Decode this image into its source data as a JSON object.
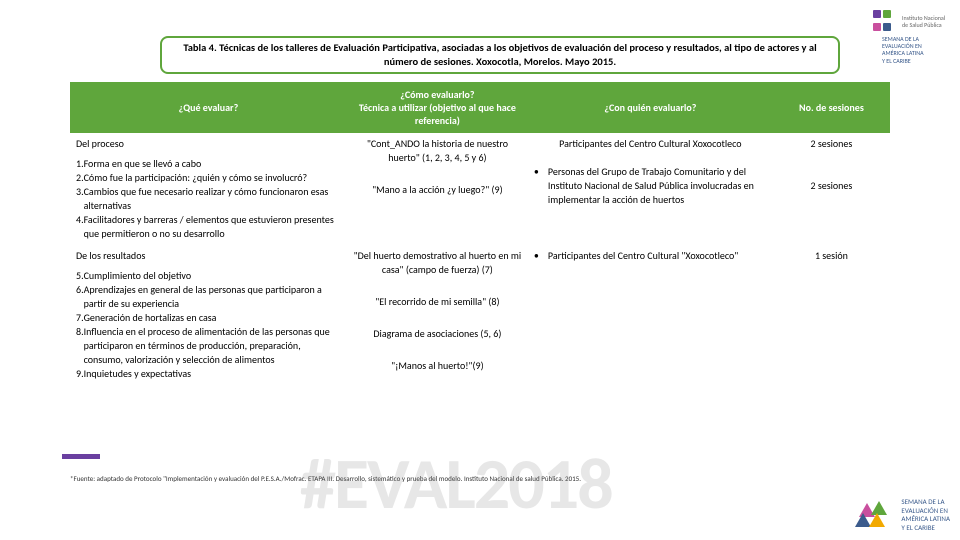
{
  "title": "Tabla 4. Técnicas de los talleres de Evaluación Participativa, asociadas a los objetivos de evaluación del proceso y resultados, al tipo de actores y al número de sesiones. Xoxocotla, Morelos. Mayo 2015.",
  "title_border_color": "#5fa63c",
  "title_text_color": "#000000",
  "purple_bar_color": "#6a3fa0",
  "header_bg": "#5fa63c",
  "headers": {
    "que": "¿Qué evaluar?",
    "como": "¿Cómo evaluarlo?\nTécnica a utilizar (objetivo al que hace referencia)",
    "quien": "¿Con quién evaluarlo?",
    "num": "No. de sesiones"
  },
  "rows": [
    {
      "section": "Del proceso",
      "items": [
        {
          "n": "1.",
          "t": "Forma en que se llevó a cabo"
        },
        {
          "n": "2.",
          "t": "Cómo fue la participación: ¿quién y cómo se involucró?"
        },
        {
          "n": "3.",
          "t": "Cambios que fue necesario realizar y cómo funcionaron esas alternativas"
        },
        {
          "n": "4.",
          "t": "Facilitadores y barreras / elementos que estuvieron presentes que permitieron o no su desarrollo"
        }
      ],
      "como": [
        "\"Cont_ANDO la historia de nuestro huerto\" (1, 2, 3, 4, 5 y 6)",
        "\"Mano a la acción ¿y luego?\" (9)"
      ],
      "quien": [
        {
          "bullet": false,
          "t": "Participantes del Centro Cultural Xoxocotleco"
        },
        {
          "bullet": true,
          "t": "Personas del Grupo de Trabajo Comunitario y del Instituto Nacional de Salud Pública involucradas en implementar la acción de huertos"
        }
      ],
      "num": [
        "2 sesiones",
        "2 sesiones"
      ]
    },
    {
      "section": "De los resultados",
      "items": [
        {
          "n": "5.",
          "t": "Cumplimiento del objetivo"
        },
        {
          "n": "6.",
          "t": "Aprendizajes en general de las personas que participaron a partir de su experiencia"
        },
        {
          "n": "7.",
          "t": "Generación de hortalizas en casa"
        },
        {
          "n": "8.",
          "t": "Influencia en el proceso de alimentación de las personas que participaron en términos de producción, preparación, consumo, valorización y selección de alimentos"
        },
        {
          "n": "9.",
          "t": "Inquietudes y expectativas"
        }
      ],
      "como": [
        "\"Del huerto demostrativo al huerto en mi casa\" (campo de fuerza) (7)",
        "\"El recorrido de mi semilla\" (8)",
        "Diagrama de asociaciones (5, 6)",
        "\"¡Manos al huerto!\"(9)"
      ],
      "quien": [
        {
          "bullet": true,
          "t": "Participantes del Centro Cultural \"Xoxocotleco\""
        }
      ],
      "num": [
        "1 sesión"
      ]
    }
  ],
  "footnote": "*Fuente: adaptado de Protocolo \"Implementación y evaluación del P.E.S.A./Mofrac. ETAPA III. Desarrollo, sistemático y prueba del modelo. Instituto Nacional de salud Pública. 2015.",
  "watermark": "#EVAL2018",
  "top_logo": {
    "colors": [
      "#6a3fa0",
      "#5fa63c",
      "#c94f9e",
      "#3b5b8c"
    ],
    "text_l1": "Instituto Nacional",
    "text_l2": "de Salud Pública"
  },
  "right_logo": {
    "l1": "SEMANA DE LA",
    "l2": "EVALUACIÓN EN",
    "l3": "AMÉRICA LATINA",
    "l4": "Y EL CARIBE"
  },
  "bottom_logo": {
    "colors": [
      "#c94f9e",
      "#5fa63c",
      "#3b5b8c",
      "#f2a900"
    ],
    "l1": "SEMANA DE LA",
    "l2": "EVALUACIÓN EN",
    "l3": "AMÉRICA LATINA",
    "l4": "Y EL CARIBE"
  }
}
